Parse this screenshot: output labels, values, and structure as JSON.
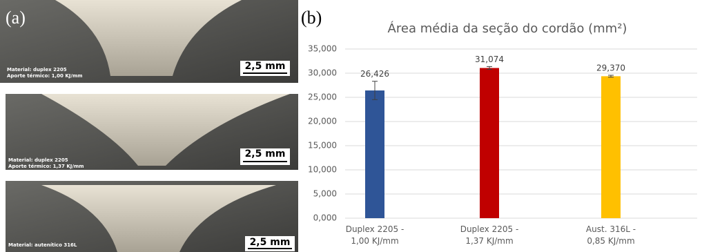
{
  "panel_labels": [
    "(a)",
    "(b)"
  ],
  "micrographs": [
    {
      "material": "Material: duplex 2205",
      "heat_input": "Aporte térmico: 1,00 KJ/mm",
      "scale": "2,5 mm"
    },
    {
      "material": "Material: duplex 2205",
      "heat_input": "Aporte térmico: 1,37 KJ/mm",
      "scale": "2,5 mm"
    },
    {
      "material": "Material: autenítico 316L",
      "scale": "2,5 mm"
    }
  ],
  "chart_data": {
    "type": "bar",
    "title": "Área média da seção do cordão (mm²)",
    "categories": [
      "Duplex 2205 -\n1,00 KJ/mm",
      "Duplex 2205 -\n1,37 KJ/mm",
      "Aust. 316L -\n0,85 KJ/mm"
    ],
    "values": [
      26.426,
      31.074,
      29.37
    ],
    "value_labels": [
      "26,426",
      "31,074",
      "29,370"
    ],
    "errors": [
      1.9,
      0.3,
      0.2
    ],
    "colors": [
      "#2f5597",
      "#c00000",
      "#ffc000"
    ],
    "ylim": [
      0,
      35
    ],
    "yticks": [
      {
        "value": 0,
        "label": "0,000"
      },
      {
        "value": 5,
        "label": "5,000"
      },
      {
        "value": 10,
        "label": "10,000"
      },
      {
        "value": 15,
        "label": "15,000"
      },
      {
        "value": 20,
        "label": "20,000"
      },
      {
        "value": 25,
        "label": "25,000"
      },
      {
        "value": 30,
        "label": "30,000"
      },
      {
        "value": 35,
        "label": "35,000"
      }
    ],
    "grid": true
  }
}
